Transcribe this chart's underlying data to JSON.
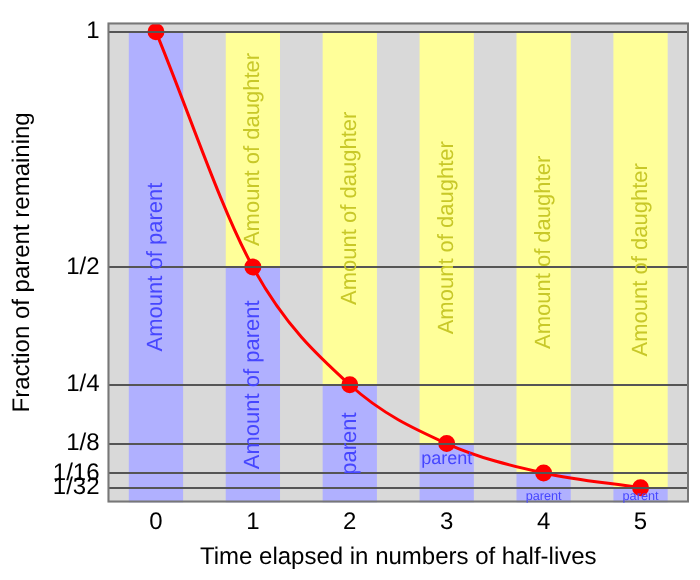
{
  "chart_data": {
    "type": "bar",
    "stacked": true,
    "xlabel": "Time elapsed in numbers of half-lives",
    "ylabel": "Fraction of parent remaining",
    "categories": [
      "0",
      "1",
      "2",
      "3",
      "4",
      "5"
    ],
    "series": [
      {
        "color": "#b0b0ff",
        "values": [
          1,
          0.5,
          0.25,
          0.125,
          0.0625,
          0.03125
        ],
        "value_labels": [
          "Amount of parent",
          "Amount of parent",
          "parent",
          "parent",
          "parent",
          "parent"
        ]
      },
      {
        "color": "#ffff99",
        "values": [
          0,
          0.5,
          0.75,
          0.875,
          0.9375,
          0.96875
        ],
        "value_labels": [
          null,
          "Amount of daughter",
          "Amount of daughter",
          "Amount of daughter",
          "Amount of daughter",
          "Amount of daughter"
        ]
      },
      {
        "type": "line",
        "color": "#ff0000",
        "values": [
          1,
          0.5,
          0.25,
          0.125,
          0.0625,
          0.03125
        ]
      }
    ],
    "ylim": [
      0,
      1.02
    ],
    "yticks": [
      {
        "value": 0.03125,
        "label": "1/32"
      },
      {
        "value": 0.0625,
        "label": "1/16"
      },
      {
        "value": 0.125,
        "label": "1/8"
      },
      {
        "value": 0.25,
        "label": "1/4"
      },
      {
        "value": 0.5,
        "label": "1/2"
      },
      1
    ],
    "grid": "y",
    "legend": false,
    "marker": "circle",
    "line_style": "solid"
  }
}
